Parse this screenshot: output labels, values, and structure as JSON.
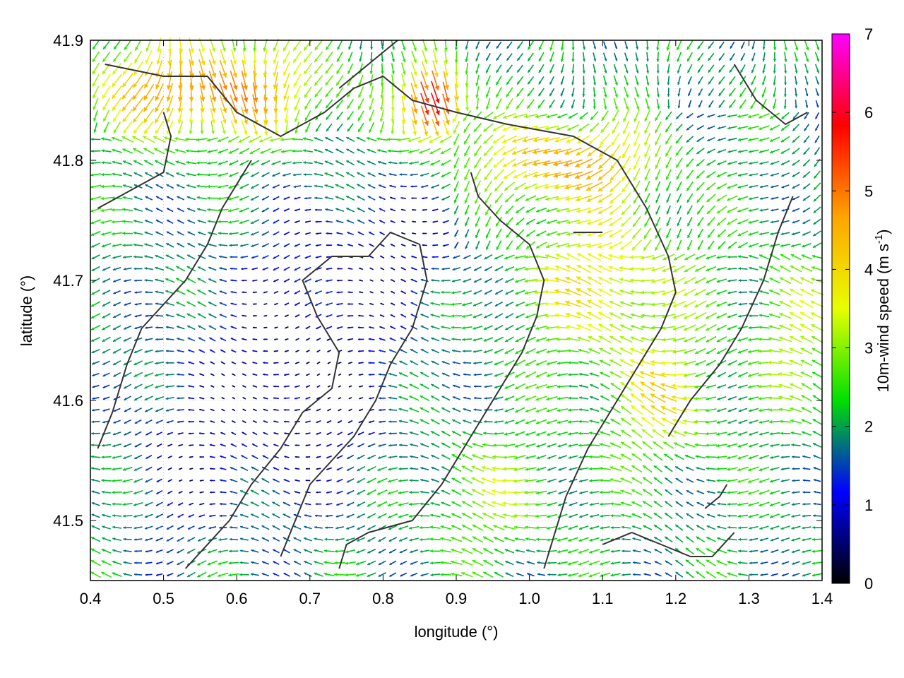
{
  "chart_data": {
    "type": "vector-field",
    "title": "",
    "xlabel": "longitude (°)",
    "ylabel": "latitude (°)",
    "xlim": [
      0.4,
      1.4
    ],
    "ylim": [
      41.45,
      41.9
    ],
    "xticks": [
      "0.4",
      "0.5",
      "0.6",
      "0.7",
      "0.8",
      "0.9",
      "1.0",
      "1.1",
      "1.2",
      "1.3",
      "1.4"
    ],
    "yticks": [
      "41.5",
      "41.6",
      "41.7",
      "41.8",
      "41.9"
    ],
    "grid": true,
    "colorbar": {
      "label_main": "10m-wind speed (m s",
      "label_sup": "-1",
      "label_end": ")",
      "range": [
        0,
        7
      ],
      "ticks": [
        "0",
        "1",
        "2",
        "3",
        "4",
        "5",
        "6",
        "7"
      ],
      "colormap": [
        "#000000",
        "#0000ff",
        "#00e000",
        "#e8ff00",
        "#ffa500",
        "#ff0000",
        "#ff00ff"
      ]
    },
    "contour_lines": [
      [
        [
          0.42,
          41.88
        ],
        [
          0.5,
          41.87
        ],
        [
          0.56,
          41.87
        ],
        [
          0.6,
          41.84
        ],
        [
          0.66,
          41.82
        ],
        [
          0.72,
          41.84
        ],
        [
          0.76,
          41.86
        ],
        [
          0.8,
          41.87
        ],
        [
          0.84,
          41.85
        ],
        [
          0.9,
          41.84
        ],
        [
          0.97,
          41.83
        ],
        [
          1.06,
          41.82
        ],
        [
          1.12,
          41.8
        ],
        [
          1.16,
          41.76
        ],
        [
          1.19,
          41.72
        ],
        [
          1.2,
          41.69
        ],
        [
          1.18,
          41.66
        ],
        [
          1.15,
          41.63
        ],
        [
          1.12,
          41.6
        ],
        [
          1.08,
          41.56
        ],
        [
          1.05,
          41.52
        ],
        [
          1.02,
          41.46
        ]
      ],
      [
        [
          0.41,
          41.76
        ],
        [
          0.47,
          41.78
        ],
        [
          0.5,
          41.79
        ],
        [
          0.51,
          41.82
        ],
        [
          0.5,
          41.84
        ]
      ],
      [
        [
          0.62,
          41.8
        ],
        [
          0.58,
          41.76
        ],
        [
          0.56,
          41.73
        ],
        [
          0.53,
          41.7
        ],
        [
          0.5,
          41.68
        ],
        [
          0.47,
          41.66
        ],
        [
          0.45,
          41.63
        ],
        [
          0.43,
          41.59
        ],
        [
          0.41,
          41.56
        ]
      ],
      [
        [
          0.53,
          41.46
        ],
        [
          0.59,
          41.5
        ],
        [
          0.62,
          41.53
        ],
        [
          0.66,
          41.56
        ],
        [
          0.69,
          41.59
        ],
        [
          0.73,
          41.61
        ],
        [
          0.74,
          41.64
        ],
        [
          0.71,
          41.67
        ],
        [
          0.69,
          41.7
        ],
        [
          0.73,
          41.72
        ],
        [
          0.78,
          41.72
        ],
        [
          0.81,
          41.74
        ],
        [
          0.85,
          41.73
        ],
        [
          0.86,
          41.7
        ],
        [
          0.84,
          41.66
        ],
        [
          0.81,
          41.63
        ],
        [
          0.79,
          41.6
        ],
        [
          0.76,
          41.57
        ],
        [
          0.73,
          41.55
        ],
        [
          0.7,
          41.53
        ],
        [
          0.68,
          41.5
        ],
        [
          0.66,
          41.47
        ]
      ],
      [
        [
          0.74,
          41.46
        ],
        [
          0.75,
          41.48
        ],
        [
          0.78,
          41.49
        ],
        [
          0.84,
          41.5
        ],
        [
          0.88,
          41.53
        ],
        [
          0.92,
          41.57
        ],
        [
          0.96,
          41.61
        ],
        [
          0.99,
          41.64
        ],
        [
          1.01,
          41.67
        ],
        [
          1.02,
          41.7
        ],
        [
          1.0,
          41.73
        ],
        [
          0.96,
          41.75
        ],
        [
          0.93,
          41.77
        ],
        [
          0.92,
          41.79
        ]
      ],
      [
        [
          0.74,
          41.86
        ],
        [
          0.78,
          41.88
        ],
        [
          0.82,
          41.9
        ]
      ],
      [
        [
          1.28,
          41.88
        ],
        [
          1.31,
          41.85
        ],
        [
          1.35,
          41.83
        ],
        [
          1.38,
          41.84
        ]
      ],
      [
        [
          1.19,
          41.57
        ],
        [
          1.22,
          41.6
        ],
        [
          1.26,
          41.63
        ],
        [
          1.29,
          41.66
        ],
        [
          1.32,
          41.7
        ],
        [
          1.34,
          41.74
        ],
        [
          1.36,
          41.77
        ]
      ],
      [
        [
          1.1,
          41.48
        ],
        [
          1.14,
          41.49
        ],
        [
          1.18,
          41.48
        ],
        [
          1.22,
          41.47
        ],
        [
          1.25,
          41.47
        ],
        [
          1.28,
          41.49
        ]
      ],
      [
        [
          1.24,
          41.51
        ],
        [
          1.26,
          41.52
        ],
        [
          1.27,
          41.53
        ]
      ],
      [
        [
          1.06,
          41.74
        ],
        [
          1.08,
          41.74
        ],
        [
          1.1,
          41.74
        ]
      ]
    ]
  }
}
